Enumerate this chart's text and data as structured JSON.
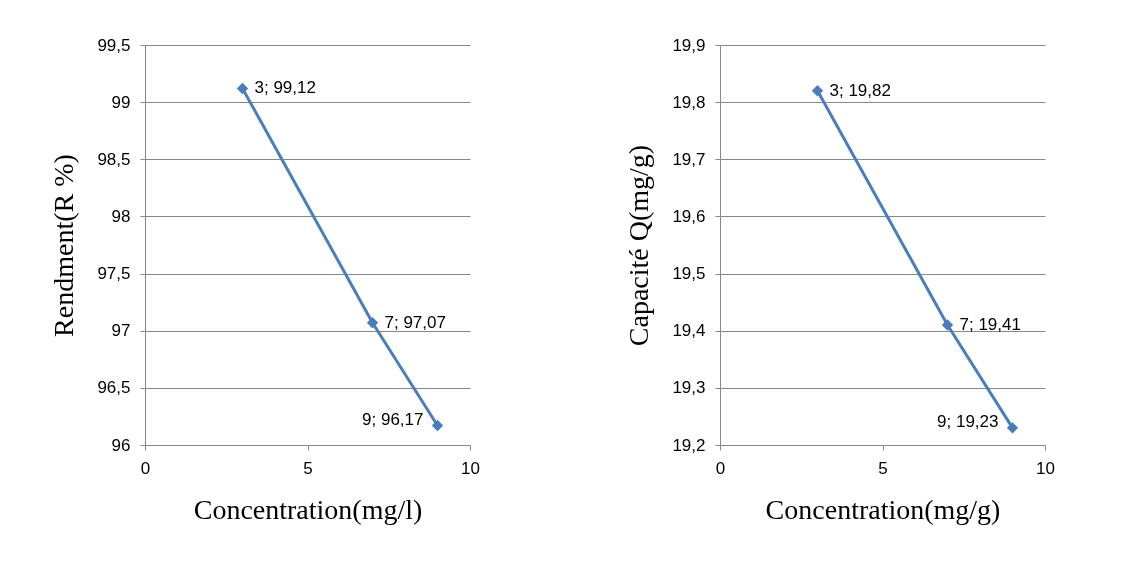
{
  "chart_data": [
    {
      "type": "line",
      "xlabel": "Concentration(mg/l)",
      "ylabel": "Rendment(R %)",
      "x": [
        3,
        7,
        9
      ],
      "series": [
        {
          "color": "#4a7ebb",
          "values": [
            99.12,
            97.07,
            96.17
          ],
          "value_labels": [
            "3; 99,12",
            "7; 97,07",
            "9; 96,17"
          ]
        }
      ],
      "xlim": [
        0,
        10
      ],
      "xticks": [
        0,
        5,
        10
      ],
      "ylim": [
        96,
        99.5
      ],
      "yticks": [
        96,
        {
          "value": 96.5,
          "label": "96,5"
        },
        97,
        {
          "value": 97.5,
          "label": "97,5"
        },
        98,
        {
          "value": 98.5,
          "label": "98,5"
        },
        99,
        {
          "value": 99.5,
          "label": "99,5"
        }
      ],
      "grid": "y",
      "marker": "diamond"
    },
    {
      "type": "line",
      "xlabel": "Concentration(mg/g)",
      "ylabel": "Capacité Q(mg/g)",
      "x": [
        3,
        7,
        9
      ],
      "series": [
        {
          "color": "#4a7ebb",
          "values": [
            19.82,
            19.41,
            19.23
          ],
          "value_labels": [
            "3; 19,82",
            "7; 19,41",
            "9; 19,23"
          ]
        }
      ],
      "xlim": [
        0,
        10
      ],
      "xticks": [
        0,
        5,
        10
      ],
      "ylim": [
        19.2,
        19.9
      ],
      "yticks": [
        {
          "value": 19.2,
          "label": "19,2"
        },
        {
          "value": 19.3,
          "label": "19,3"
        },
        {
          "value": 19.4,
          "label": "19,4"
        },
        {
          "value": 19.5,
          "label": "19,5"
        },
        {
          "value": 19.6,
          "label": "19,6"
        },
        {
          "value": 19.7,
          "label": "19,7"
        },
        {
          "value": 19.8,
          "label": "19,8"
        },
        {
          "value": 19.9,
          "label": "19,9"
        }
      ],
      "grid": "y",
      "marker": "diamond"
    }
  ]
}
